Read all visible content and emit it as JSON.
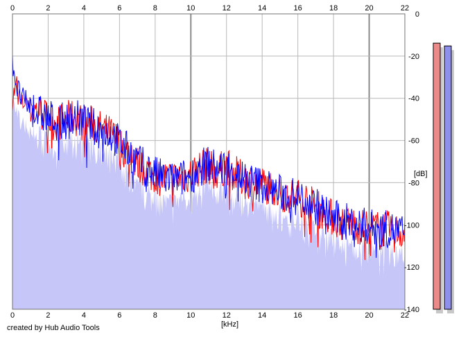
{
  "credit": "created by Hub Audio Tools",
  "colors": {
    "fill": "#c6c6f8",
    "grid": "#b8b8b8",
    "grid_major": "#8a8a8a",
    "channel_left": "#ff0000",
    "channel_right": "#0000ff",
    "meter_left": "#ec8a8a",
    "meter_right": "#8f8fec",
    "meter_shadow": "#c8c8c8"
  },
  "chart_data": {
    "type": "area",
    "xlabel": "[kHz]",
    "ylabel": "[dB]",
    "xlim": [
      0,
      22
    ],
    "ylim": [
      -140,
      0
    ],
    "x_ticks": [
      0,
      2,
      4,
      6,
      8,
      10,
      12,
      14,
      16,
      18,
      20,
      22
    ],
    "y_ticks": [
      0,
      -20,
      -40,
      -60,
      -80,
      -100,
      -120,
      -140
    ],
    "grid": true,
    "x_axis_labels": "top-and-bottom",
    "series": [
      {
        "color": "#ff0000",
        "x": [
          0,
          0.25,
          0.5,
          0.75,
          1,
          1.5,
          2,
          2.5,
          3,
          3.5,
          4,
          4.5,
          5,
          5.5,
          6,
          6.5,
          7,
          7.5,
          8,
          8.5,
          9,
          9.5,
          10,
          10.5,
          11,
          11.5,
          12,
          12.5,
          13,
          13.5,
          14,
          14.5,
          15,
          15.5,
          16,
          16.5,
          17,
          17.5,
          18,
          18.5,
          19,
          19.5,
          20,
          20.5,
          21,
          21.5,
          22
        ],
        "y": [
          -40,
          -33,
          -44,
          -40,
          -45,
          -46,
          -50,
          -52,
          -50,
          -49,
          -52,
          -52,
          -55,
          -57,
          -62,
          -66,
          -71,
          -74,
          -77,
          -78,
          -78,
          -77,
          -76,
          -73,
          -72,
          -75,
          -72,
          -76,
          -79,
          -79,
          -81,
          -82,
          -85,
          -86,
          -87,
          -88,
          -92,
          -94,
          -97,
          -99,
          -99,
          -101,
          -101,
          -102,
          -102,
          -103,
          -103
        ]
      },
      {
        "color": "#0000ff",
        "x": [
          0,
          0.25,
          0.5,
          0.75,
          1,
          1.5,
          2,
          2.5,
          3,
          3.5,
          4,
          4.5,
          5,
          5.5,
          6,
          6.5,
          7,
          7.5,
          8,
          8.5,
          9,
          9.5,
          10,
          10.5,
          11,
          11.5,
          12,
          12.5,
          13,
          13.5,
          14,
          14.5,
          15,
          15.5,
          16,
          16.5,
          17,
          17.5,
          18,
          18.5,
          19,
          19.5,
          20,
          20.5,
          21,
          21.5,
          22
        ],
        "y": [
          -22,
          -35,
          -40,
          -42,
          -44,
          -47,
          -49,
          -51,
          -51,
          -49,
          -51,
          -53,
          -55,
          -57,
          -61,
          -65,
          -70,
          -73,
          -76,
          -78,
          -79,
          -78,
          -77,
          -73,
          -71,
          -74,
          -72,
          -75,
          -78,
          -80,
          -81,
          -83,
          -85,
          -86,
          -87,
          -88,
          -91,
          -94,
          -97,
          -98,
          -99,
          -100,
          -101,
          -102,
          -102,
          -103,
          -104
        ]
      }
    ]
  },
  "meters": [
    {
      "channel": "left",
      "level": 0.95
    },
    {
      "channel": "right",
      "level": 0.94
    }
  ]
}
